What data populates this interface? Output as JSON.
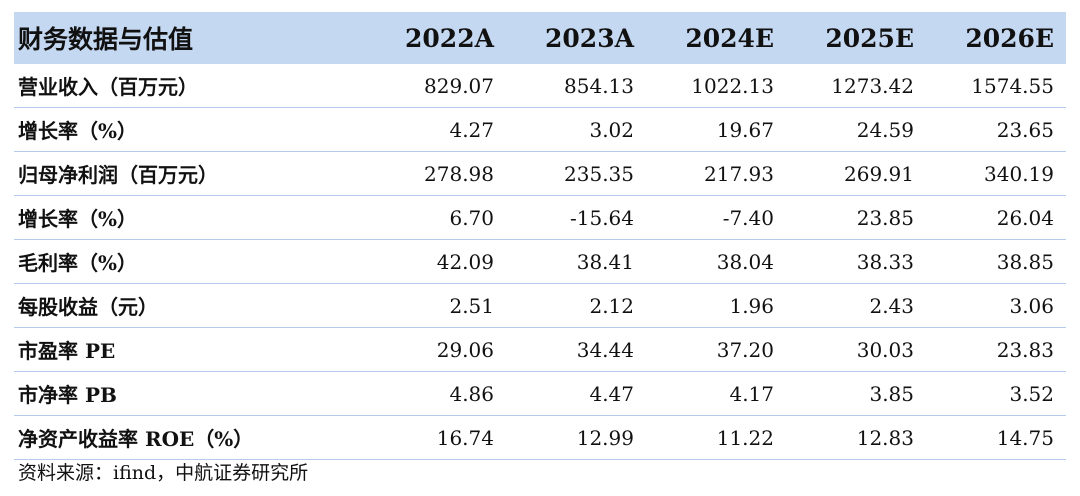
{
  "table": {
    "title": "财务数据与估值",
    "years": [
      "2022A",
      "2023A",
      "2024E",
      "2025E",
      "2026E"
    ],
    "rows": [
      {
        "label": "营业收入（百万元）",
        "values": [
          "829.07",
          "854.13",
          "1022.13",
          "1273.42",
          "1574.55"
        ]
      },
      {
        "label": "增长率（%）",
        "values": [
          "4.27",
          "3.02",
          "19.67",
          "24.59",
          "23.65"
        ]
      },
      {
        "label": "归母净利润（百万元）",
        "values": [
          "278.98",
          "235.35",
          "217.93",
          "269.91",
          "340.19"
        ]
      },
      {
        "label": "增长率（%）",
        "values": [
          "6.70",
          "-15.64",
          "-7.40",
          "23.85",
          "26.04"
        ]
      },
      {
        "label": "毛利率（%）",
        "values": [
          "42.09",
          "38.41",
          "38.04",
          "38.33",
          "38.85"
        ]
      },
      {
        "label": "每股收益（元）",
        "values": [
          "2.51",
          "2.12",
          "1.96",
          "2.43",
          "3.06"
        ]
      },
      {
        "label": "市盈率 PE",
        "values": [
          "29.06",
          "34.44",
          "37.20",
          "30.03",
          "23.83"
        ]
      },
      {
        "label": "市净率 PB",
        "values": [
          "4.86",
          "4.47",
          "4.17",
          "3.85",
          "3.52"
        ]
      },
      {
        "label": "净资产收益率 ROE（%）",
        "values": [
          "16.74",
          "12.99",
          "11.22",
          "12.83",
          "14.75"
        ]
      }
    ]
  },
  "source": "资料来源：ifind，中航证券研究所",
  "colors": {
    "header_bg": "#c5d8f1",
    "row_border": "#b7cbe8",
    "text": "#111111"
  }
}
